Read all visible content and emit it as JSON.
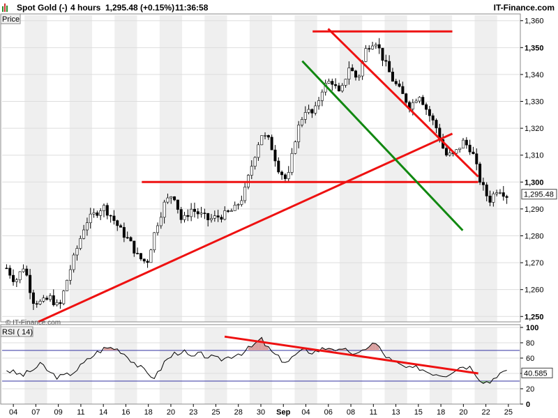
{
  "header": {
    "instrument": "Spot Gold (-)",
    "interval": "4 hours",
    "last_value": "1,295.48 (+0.15%)",
    "time": "11:36:58",
    "brand": "IT-Finance.com",
    "watermark": "© IT-Finance.com"
  },
  "colors": {
    "up_candle": "#2e8b2e",
    "down_candle": "#c03030",
    "resistance_line": "#ee1111",
    "support_channel_line": "#118811",
    "rsi_line": "#000000",
    "rsi_band": "#3030a0",
    "rsi_overbought_fill": "#d9a0a0",
    "rsi_oversold_fill": "#90c090"
  },
  "chart_data": [
    {
      "type": "candlestick",
      "panel_label": "Price",
      "ylim": [
        1248,
        1362
      ],
      "yticks": [
        1250,
        1260,
        1270,
        1280,
        1290,
        1300,
        1310,
        1320,
        1330,
        1340,
        1350,
        1360
      ],
      "ytick_labels": [
        "1,250",
        "1,260",
        "1,270",
        "1,280",
        "1,290",
        "1,300",
        "1,310",
        "1,320",
        "1,330",
        "1,340",
        "1,350",
        "1,360"
      ],
      "bold_ticks": [
        1250,
        1300,
        1350
      ],
      "current_price_label": "1,295.48",
      "current_price": 1295.48,
      "x_labels": [
        "04",
        "07",
        "09",
        "11",
        "14",
        "16",
        "18",
        "20",
        "23",
        "25",
        "28",
        "30",
        "Sep",
        "04",
        "06",
        "08",
        "11",
        "13",
        "15",
        "18",
        "20",
        "22",
        "25"
      ],
      "close_path": [
        1268,
        1263,
        1269,
        1256,
        1255,
        1257,
        1253,
        1265,
        1275,
        1285,
        1288,
        1291,
        1287,
        1282,
        1278,
        1272,
        1270,
        1283,
        1292,
        1296,
        1285,
        1290,
        1288,
        1286,
        1287,
        1288,
        1290,
        1295,
        1307,
        1318,
        1315,
        1305,
        1300,
        1318,
        1327,
        1325,
        1335,
        1338,
        1332,
        1343,
        1338,
        1350,
        1353,
        1345,
        1338,
        1333,
        1328,
        1333,
        1326,
        1320,
        1310,
        1310,
        1315,
        1312,
        1300,
        1293,
        1298,
        1295
      ],
      "trendlines": [
        {
          "name": "Resistance at 1,356",
          "color": "red",
          "from": {
            "t": 0.6,
            "v": 1356
          },
          "to": {
            "t": 0.87,
            "v": 1356
          }
        },
        {
          "name": "Horizontal 1,300",
          "color": "red",
          "from": {
            "t": 0.27,
            "v": 1300
          },
          "to": {
            "t": 0.92,
            "v": 1300
          }
        },
        {
          "name": "Rising support",
          "color": "red",
          "from": {
            "t": 0.07,
            "v": 1248
          },
          "to": {
            "t": 0.87,
            "v": 1318
          }
        },
        {
          "name": "Falling resistance",
          "color": "red",
          "from": {
            "t": 0.63,
            "v": 1357
          },
          "to": {
            "t": 0.92,
            "v": 1302
          }
        },
        {
          "name": "Falling support",
          "color": "green",
          "from": {
            "t": 0.58,
            "v": 1345
          },
          "to": {
            "t": 0.89,
            "v": 1282
          }
        }
      ]
    },
    {
      "type": "line",
      "panel_label": "RSI ( 14)",
      "ylim": [
        0,
        100
      ],
      "yticks": [
        0,
        20,
        40,
        60,
        80,
        100
      ],
      "bold_ticks": [
        0,
        100
      ],
      "bands": [
        30,
        70
      ],
      "current_value_label": "40.585",
      "current_value": 40.585,
      "rsi_path": [
        45,
        40,
        38,
        45,
        52,
        40,
        35,
        38,
        45,
        55,
        65,
        72,
        74,
        70,
        60,
        50,
        40,
        35,
        55,
        65,
        70,
        60,
        65,
        62,
        58,
        60,
        65,
        68,
        75,
        85,
        70,
        60,
        55,
        65,
        70,
        68,
        72,
        75,
        68,
        70,
        62,
        75,
        80,
        65,
        55,
        50,
        45,
        48,
        42,
        40,
        38,
        45,
        50,
        48,
        32,
        28,
        40,
        41
      ],
      "trendlines": [
        {
          "name": "RSI resistance",
          "color": "red",
          "from": {
            "t": 0.43,
            "v": 88
          },
          "to": {
            "t": 0.92,
            "v": 40
          }
        }
      ]
    }
  ]
}
